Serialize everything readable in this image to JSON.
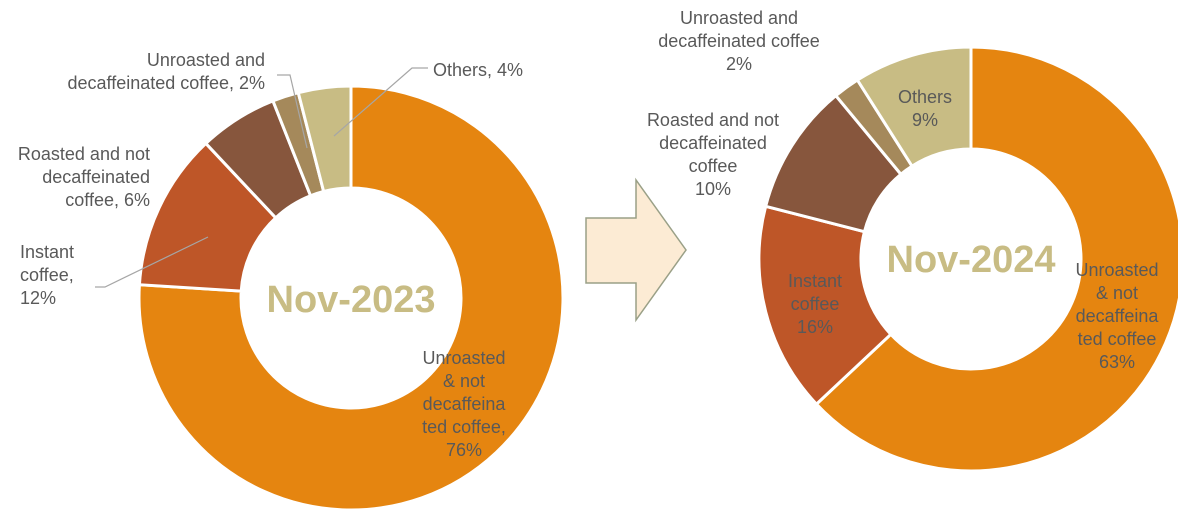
{
  "chart_data": [
    {
      "type": "pie",
      "center_label": "Nov-2023",
      "categories": [
        "Unroasted & not decaffeinated coffee",
        "Instant coffee",
        "Roasted and not decaffeinated coffee",
        "Unroasted and decaffeinated coffee",
        "Others"
      ],
      "values": [
        76,
        12,
        6,
        2,
        4
      ],
      "colors": [
        "#E58510",
        "#BE5628",
        "#87563D",
        "#A5895B",
        "#C8BC84"
      ],
      "labels": [
        [
          "Unroasted",
          "& not",
          "decaffeina",
          "ted coffee,",
          "76%"
        ],
        [
          "Instant",
          "coffee,",
          "12%"
        ],
        [
          "Roasted and not",
          "decaffeinated",
          "coffee, 6%"
        ],
        [
          "Unroasted and",
          "decaffeinated coffee, 2%"
        ],
        [
          "Others, 4%"
        ]
      ]
    },
    {
      "type": "pie",
      "center_label": "Nov-2024",
      "categories": [
        "Unroasted & not decaffeinated coffee",
        "Instant coffee",
        "Roasted and not decaffeinated coffee",
        "Unroasted and decaffeinated coffee",
        "Others"
      ],
      "values": [
        63,
        16,
        10,
        2,
        9
      ],
      "colors": [
        "#E58510",
        "#BE5628",
        "#87563D",
        "#A5895B",
        "#C8BC84"
      ],
      "labels": [
        [
          "Unroasted",
          "& not",
          "decaffeina",
          "ted coffee",
          "63%"
        ],
        [
          "Instant",
          "coffee",
          "16%"
        ],
        [
          "Roasted and not",
          "decaffeinated",
          "coffee",
          "10%"
        ],
        [
          "Unroasted and",
          "decaffeinated coffee",
          "2%"
        ],
        [
          "Others",
          "9%"
        ]
      ]
    }
  ],
  "arrow": {
    "fill": "#FCEBD4",
    "stroke": "#9AA087",
    "icon": "right-arrow-icon"
  }
}
